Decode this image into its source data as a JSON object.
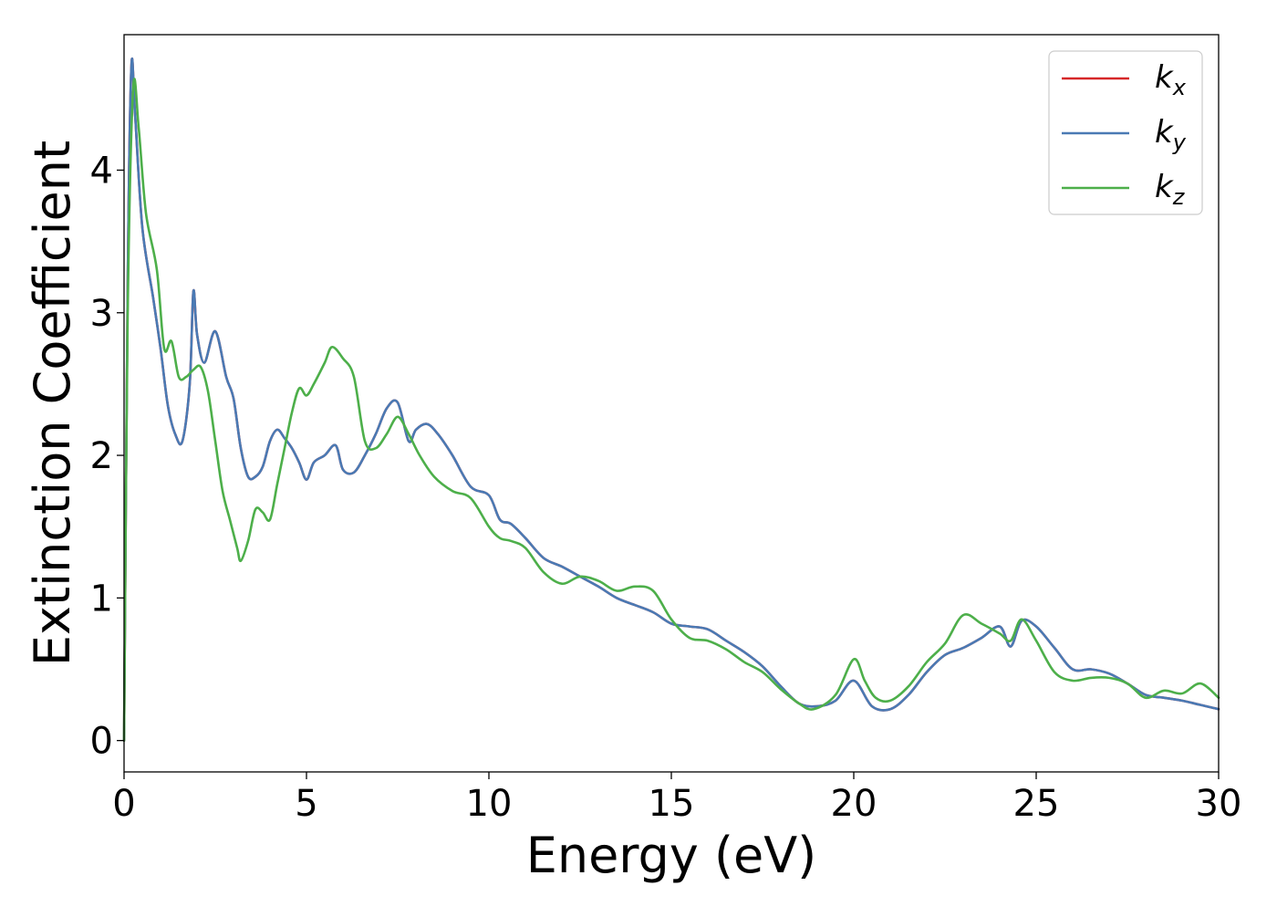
{
  "chart_data": {
    "type": "line",
    "title": "",
    "xlabel": "Energy (eV)",
    "ylabel": "Extinction Coefficient",
    "xlim": [
      0,
      30
    ],
    "ylim": [
      -0.22,
      4.95
    ],
    "xticks": [
      0,
      5,
      10,
      15,
      20,
      25,
      30
    ],
    "yticks": [
      0,
      1,
      2,
      3,
      4
    ],
    "grid": false,
    "legend_position": "top-right",
    "series": [
      {
        "name": "k_x",
        "name_base": "k",
        "name_sub": "x",
        "color": "#d62728",
        "x": [
          0,
          0.1,
          0.2,
          0.3,
          0.5,
          0.8,
          1.0,
          1.2,
          1.4,
          1.6,
          1.8,
          1.9,
          2.0,
          2.2,
          2.5,
          2.8,
          3.0,
          3.2,
          3.4,
          3.6,
          3.8,
          4.0,
          4.2,
          4.4,
          4.6,
          4.8,
          5.0,
          5.2,
          5.5,
          5.8,
          6.0,
          6.3,
          6.6,
          6.9,
          7.2,
          7.5,
          7.8,
          8.0,
          8.3,
          8.6,
          9.0,
          9.5,
          10.0,
          10.3,
          10.6,
          11.0,
          11.5,
          12.0,
          12.5,
          13.0,
          13.5,
          14.0,
          14.5,
          15.0,
          15.5,
          16.0,
          16.5,
          17.0,
          17.5,
          18.0,
          18.5,
          19.0,
          19.5,
          20.0,
          20.5,
          21.0,
          21.5,
          22.0,
          22.5,
          23.0,
          23.5,
          24.0,
          24.3,
          24.6,
          25.0,
          25.5,
          26.0,
          26.5,
          27.0,
          27.5,
          28.0,
          28.5,
          29.0,
          29.5,
          30.0
        ],
        "y": [
          0.0,
          3.2,
          4.72,
          4.4,
          3.6,
          3.1,
          2.75,
          2.35,
          2.15,
          2.1,
          2.5,
          3.15,
          2.85,
          2.65,
          2.87,
          2.55,
          2.4,
          2.05,
          1.85,
          1.85,
          1.92,
          2.1,
          2.18,
          2.12,
          2.05,
          1.95,
          1.83,
          1.95,
          2.0,
          2.07,
          1.9,
          1.88,
          2.0,
          2.15,
          2.33,
          2.37,
          2.1,
          2.18,
          2.22,
          2.15,
          2.0,
          1.78,
          1.72,
          1.55,
          1.52,
          1.42,
          1.28,
          1.22,
          1.15,
          1.08,
          1.0,
          0.95,
          0.9,
          0.82,
          0.8,
          0.78,
          0.7,
          0.62,
          0.52,
          0.38,
          0.26,
          0.24,
          0.28,
          0.42,
          0.24,
          0.22,
          0.32,
          0.48,
          0.6,
          0.65,
          0.72,
          0.8,
          0.66,
          0.84,
          0.8,
          0.65,
          0.5,
          0.5,
          0.47,
          0.4,
          0.32,
          0.3,
          0.28,
          0.25,
          0.22
        ]
      },
      {
        "name": "k_y",
        "name_base": "k",
        "name_sub": "y",
        "color": "#4a7ab4",
        "x": [
          0,
          0.1,
          0.2,
          0.3,
          0.5,
          0.8,
          1.0,
          1.2,
          1.4,
          1.6,
          1.8,
          1.9,
          2.0,
          2.2,
          2.5,
          2.8,
          3.0,
          3.2,
          3.4,
          3.6,
          3.8,
          4.0,
          4.2,
          4.4,
          4.6,
          4.8,
          5.0,
          5.2,
          5.5,
          5.8,
          6.0,
          6.3,
          6.6,
          6.9,
          7.2,
          7.5,
          7.8,
          8.0,
          8.3,
          8.6,
          9.0,
          9.5,
          10.0,
          10.3,
          10.6,
          11.0,
          11.5,
          12.0,
          12.5,
          13.0,
          13.5,
          14.0,
          14.5,
          15.0,
          15.5,
          16.0,
          16.5,
          17.0,
          17.5,
          18.0,
          18.5,
          19.0,
          19.5,
          20.0,
          20.5,
          21.0,
          21.5,
          22.0,
          22.5,
          23.0,
          23.5,
          24.0,
          24.3,
          24.6,
          25.0,
          25.5,
          26.0,
          26.5,
          27.0,
          27.5,
          28.0,
          28.5,
          29.0,
          29.5,
          30.0
        ],
        "y": [
          0.0,
          3.2,
          4.72,
          4.4,
          3.6,
          3.1,
          2.75,
          2.35,
          2.15,
          2.1,
          2.5,
          3.15,
          2.85,
          2.65,
          2.87,
          2.55,
          2.4,
          2.05,
          1.85,
          1.85,
          1.92,
          2.1,
          2.18,
          2.12,
          2.05,
          1.95,
          1.83,
          1.95,
          2.0,
          2.07,
          1.9,
          1.88,
          2.0,
          2.15,
          2.33,
          2.37,
          2.1,
          2.18,
          2.22,
          2.15,
          2.0,
          1.78,
          1.72,
          1.55,
          1.52,
          1.42,
          1.28,
          1.22,
          1.15,
          1.08,
          1.0,
          0.95,
          0.9,
          0.82,
          0.8,
          0.78,
          0.7,
          0.62,
          0.52,
          0.38,
          0.26,
          0.24,
          0.28,
          0.42,
          0.24,
          0.22,
          0.32,
          0.48,
          0.6,
          0.65,
          0.72,
          0.8,
          0.66,
          0.84,
          0.8,
          0.65,
          0.5,
          0.5,
          0.47,
          0.4,
          0.32,
          0.3,
          0.28,
          0.25,
          0.22
        ]
      },
      {
        "name": "k_z",
        "name_base": "k",
        "name_sub": "z",
        "color": "#4daf4a",
        "x": [
          0,
          0.1,
          0.25,
          0.4,
          0.6,
          0.9,
          1.1,
          1.3,
          1.5,
          1.7,
          1.9,
          2.1,
          2.3,
          2.5,
          2.7,
          2.9,
          3.1,
          3.2,
          3.4,
          3.6,
          3.8,
          4.0,
          4.2,
          4.4,
          4.6,
          4.8,
          5.0,
          5.2,
          5.5,
          5.7,
          6.0,
          6.3,
          6.6,
          6.9,
          7.2,
          7.5,
          7.8,
          8.1,
          8.5,
          9.0,
          9.5,
          10.0,
          10.3,
          10.6,
          11.0,
          11.5,
          12.0,
          12.5,
          13.0,
          13.5,
          14.0,
          14.5,
          15.0,
          15.5,
          16.0,
          16.5,
          17.0,
          17.5,
          18.0,
          18.5,
          18.9,
          19.5,
          20.0,
          20.3,
          20.6,
          21.0,
          21.5,
          22.0,
          22.5,
          23.0,
          23.5,
          24.0,
          24.3,
          24.6,
          25.0,
          25.5,
          26.0,
          26.5,
          27.0,
          27.5,
          28.0,
          28.5,
          29.0,
          29.5,
          30.0
        ],
        "y": [
          0.0,
          3.0,
          4.57,
          4.3,
          3.7,
          3.3,
          2.75,
          2.8,
          2.55,
          2.55,
          2.6,
          2.62,
          2.45,
          2.1,
          1.75,
          1.55,
          1.35,
          1.26,
          1.4,
          1.62,
          1.6,
          1.55,
          1.8,
          2.05,
          2.3,
          2.47,
          2.42,
          2.5,
          2.65,
          2.76,
          2.68,
          2.55,
          2.1,
          2.05,
          2.15,
          2.27,
          2.15,
          2.0,
          1.85,
          1.75,
          1.7,
          1.5,
          1.42,
          1.4,
          1.35,
          1.18,
          1.1,
          1.15,
          1.12,
          1.05,
          1.08,
          1.05,
          0.85,
          0.72,
          0.7,
          0.64,
          0.55,
          0.48,
          0.36,
          0.26,
          0.22,
          0.32,
          0.57,
          0.42,
          0.3,
          0.28,
          0.38,
          0.55,
          0.68,
          0.88,
          0.82,
          0.75,
          0.7,
          0.85,
          0.7,
          0.48,
          0.42,
          0.44,
          0.44,
          0.4,
          0.3,
          0.35,
          0.33,
          0.4,
          0.3
        ]
      }
    ]
  }
}
